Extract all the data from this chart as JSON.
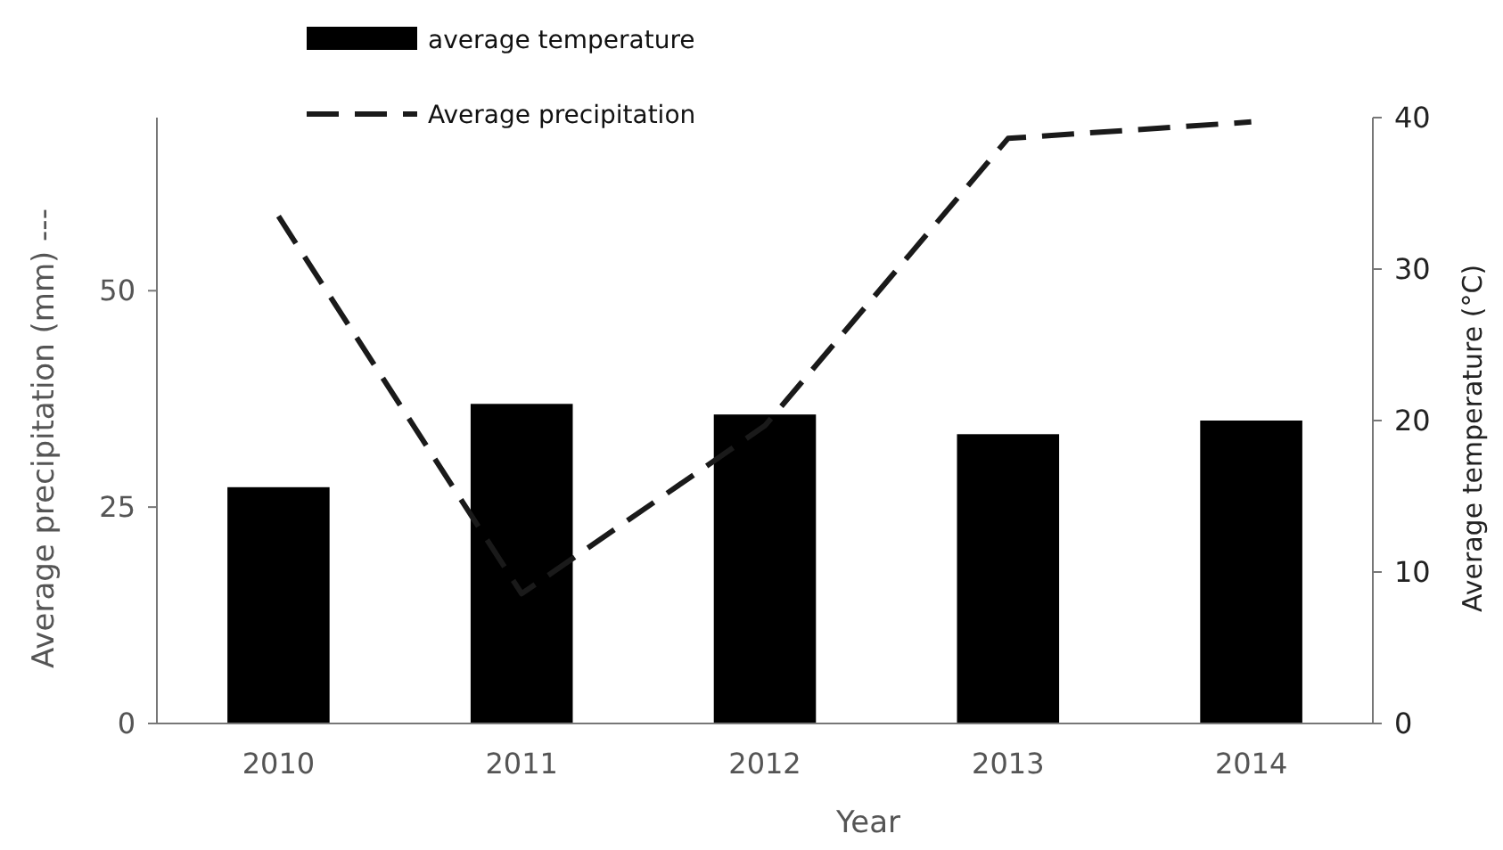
{
  "chart_data": {
    "type": "bar",
    "xlabel": "Year",
    "ylabel": "Average precipitation (mm) ---",
    "y2label": "Average temperature (°C)",
    "categories": [
      "2010",
      "2011",
      "2012",
      "2013",
      "2014"
    ],
    "series": [
      {
        "name": "average temperature",
        "axis": "y2",
        "color": "#000000",
        "values": [
          15.6,
          21.1,
          20.4,
          19.1,
          20.0
        ]
      },
      {
        "name": "Average precipitation",
        "type": "line",
        "axis": "y",
        "color": "#1a1a1a",
        "line_style": "dashed",
        "marker": "none",
        "values": [
          58.6,
          15.0,
          34.4,
          67.6,
          69.5
        ]
      }
    ],
    "ylim": [
      0,
      70
    ],
    "yticks": [
      0,
      25,
      50
    ],
    "y2lim": [
      0,
      40
    ],
    "y2ticks": [
      0,
      10,
      20,
      30,
      40
    ],
    "grid": false,
    "legend": "top"
  }
}
